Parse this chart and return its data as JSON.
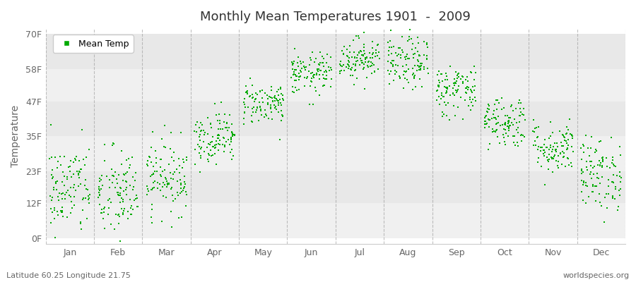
{
  "title": "Monthly Mean Temperatures 1901  -  2009",
  "ylabel": "Temperature",
  "xlabel_labels": [
    "Jan",
    "Feb",
    "Mar",
    "Apr",
    "May",
    "Jun",
    "Jul",
    "Aug",
    "Sep",
    "Oct",
    "Nov",
    "Dec"
  ],
  "ytick_labels": [
    "0F",
    "12F",
    "23F",
    "35F",
    "47F",
    "58F",
    "70F"
  ],
  "ytick_values": [
    0,
    12,
    23,
    35,
    47,
    58,
    70
  ],
  "ymin": -2,
  "ymax": 72,
  "dot_color": "#00aa00",
  "dot_size": 3,
  "background_color": "#ffffff",
  "plot_bg_color": "#ffffff",
  "stripe_colors": [
    "#f0f0f0",
    "#e8e8e8"
  ],
  "vline_color": "#999999",
  "legend_label": "Mean Temp",
  "footer_left": "Latitude 60.25 Longitude 21.75",
  "footer_right": "worldspecies.org",
  "n_years": 109,
  "monthly_means_celsius": [
    -8.5,
    -9.5,
    -6.0,
    1.5,
    8.0,
    13.5,
    16.5,
    15.5,
    10.5,
    4.5,
    -0.5,
    -5.5
  ],
  "monthly_stds_celsius": [
    4.5,
    4.5,
    3.5,
    2.5,
    2.0,
    2.0,
    2.0,
    2.5,
    2.5,
    2.5,
    2.5,
    3.5
  ]
}
